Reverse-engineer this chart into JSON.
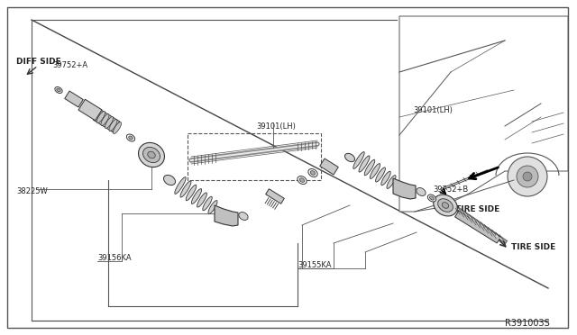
{
  "bg_color": "#ffffff",
  "line_color": "#333333",
  "text_color": "#222222",
  "part_number_ref": "R391003S",
  "labels": {
    "diff_side": "DIFF SIDE",
    "part_39752A": "39752+A",
    "part_38225W": "38225W",
    "part_39101LH_ctr": "39101(LH)",
    "part_39101LH_inset": "39101(LH)",
    "part_39156KA": "39156KA",
    "part_39155KA": "39155KA",
    "part_39752B": "39752+B",
    "tire_side_inset": "TIRE SIDE",
    "tire_side_bot": "TIRE SIDE"
  }
}
